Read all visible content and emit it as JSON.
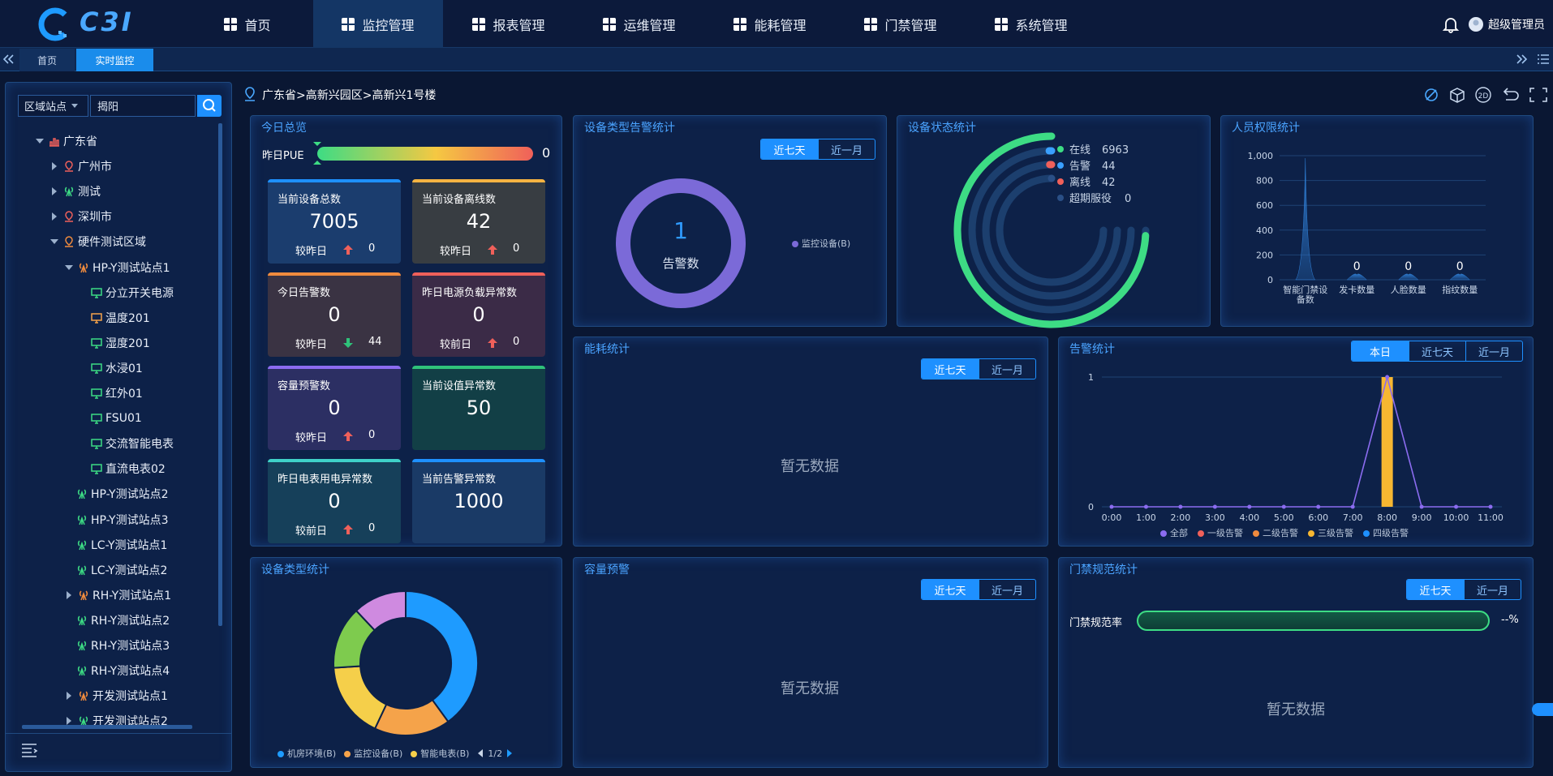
{
  "nav": {
    "logo": "C3I",
    "menu": [
      "首页",
      "监控管理",
      "报表管理",
      "运维管理",
      "能耗管理",
      "门禁管理",
      "系统管理"
    ],
    "active": 1,
    "user": "超级管理员"
  },
  "tabs": {
    "items": [
      "首页",
      "实时监控"
    ],
    "active": 1
  },
  "sidebar": {
    "filter": "区域站点",
    "search": "揭阳",
    "tree": [
      {
        "label": "广东省",
        "level": 0,
        "expander": true,
        "open": true,
        "icon": "chart",
        "color": "#f0605a"
      },
      {
        "label": "广州市",
        "level": 1,
        "expander": true,
        "open": false,
        "icon": "pin",
        "color": "#f0605a"
      },
      {
        "label": "测试",
        "level": 1,
        "expander": true,
        "open": false,
        "icon": "tower",
        "color": "#3ddc84"
      },
      {
        "label": "深圳市",
        "level": 1,
        "expander": true,
        "open": false,
        "icon": "pin",
        "color": "#f0605a"
      },
      {
        "label": "硬件测试区域",
        "level": 1,
        "expander": true,
        "open": true,
        "icon": "pin",
        "color": "#f08b3e"
      },
      {
        "label": "HP-Y测试站点1",
        "level": 2,
        "expander": true,
        "open": true,
        "icon": "tower",
        "color": "#f08b3e"
      },
      {
        "label": "分立开关电源",
        "level": 3,
        "expander": false,
        "open": false,
        "icon": "device",
        "color": "#3ddc84"
      },
      {
        "label": "温度201",
        "level": 3,
        "expander": false,
        "open": false,
        "icon": "device",
        "color": "#f5a34a"
      },
      {
        "label": "湿度201",
        "level": 3,
        "expander": false,
        "open": false,
        "icon": "device",
        "color": "#3ddc84"
      },
      {
        "label": "水浸01",
        "level": 3,
        "expander": false,
        "open": false,
        "icon": "device",
        "color": "#3ddc84"
      },
      {
        "label": "红外01",
        "level": 3,
        "expander": false,
        "open": false,
        "icon": "device",
        "color": "#3ddc84"
      },
      {
        "label": "FSU01",
        "level": 3,
        "expander": false,
        "open": false,
        "icon": "device",
        "color": "#3ddc84"
      },
      {
        "label": "交流智能电表",
        "level": 3,
        "expander": false,
        "open": false,
        "icon": "device",
        "color": "#3ddc84"
      },
      {
        "label": "直流电表02",
        "level": 3,
        "expander": false,
        "open": false,
        "icon": "device",
        "color": "#3ddc84"
      },
      {
        "label": "HP-Y测试站点2",
        "level": 2,
        "expander": false,
        "open": false,
        "icon": "tower",
        "color": "#3ddc84"
      },
      {
        "label": "HP-Y测试站点3",
        "level": 2,
        "expander": false,
        "open": false,
        "icon": "tower",
        "color": "#3ddc84"
      },
      {
        "label": "LC-Y测试站点1",
        "level": 2,
        "expander": false,
        "open": false,
        "icon": "tower",
        "color": "#3ddc84"
      },
      {
        "label": "LC-Y测试站点2",
        "level": 2,
        "expander": false,
        "open": false,
        "icon": "tower",
        "color": "#3ddc84"
      },
      {
        "label": "RH-Y测试站点1",
        "level": 2,
        "expander": true,
        "open": false,
        "icon": "tower",
        "color": "#f08b3e"
      },
      {
        "label": "RH-Y测试站点2",
        "level": 2,
        "expander": false,
        "open": false,
        "icon": "tower",
        "color": "#3ddc84"
      },
      {
        "label": "RH-Y测试站点3",
        "level": 2,
        "expander": false,
        "open": false,
        "icon": "tower",
        "color": "#3ddc84"
      },
      {
        "label": "RH-Y测试站点4",
        "level": 2,
        "expander": false,
        "open": false,
        "icon": "tower",
        "color": "#3ddc84"
      },
      {
        "label": "开发测试站点1",
        "level": 2,
        "expander": true,
        "open": false,
        "icon": "tower",
        "color": "#f08b3e"
      },
      {
        "label": "开发测试站点2",
        "level": 2,
        "expander": true,
        "open": false,
        "icon": "tower",
        "color": "#3ddc84"
      }
    ]
  },
  "breadcrumb": "广东省>高新兴园区>高新兴1号楼",
  "toolbar": {
    "mode2d": "2D"
  },
  "overview": {
    "title": "今日总览",
    "pue": {
      "label": "昨日PUE",
      "value": 0
    },
    "cards": [
      {
        "title": "当前设备总数",
        "value": 7005,
        "compare": "较昨日",
        "trend": "up",
        "delta": 0,
        "color": "#1e90ff",
        "bg": "#1b3d6e"
      },
      {
        "title": "当前设备离线数",
        "value": 42,
        "compare": "较昨日",
        "trend": "up",
        "delta": 0,
        "color": "#f5b342",
        "bg": "#383d42"
      },
      {
        "title": "今日告警数",
        "value": 0,
        "compare": "较昨日",
        "trend": "down",
        "delta": 44,
        "color": "#f08b3e",
        "bg": "#3a3343"
      },
      {
        "title": "昨日电源负载异常数",
        "value": 0,
        "compare": "较前日",
        "trend": "up",
        "delta": 0,
        "color": "#f0605a",
        "bg": "#3b2b47"
      },
      {
        "title": "容量预警数",
        "value": 0,
        "compare": "较昨日",
        "trend": "up",
        "delta": 0,
        "color": "#8b6cf0",
        "bg": "#2c2f63"
      },
      {
        "title": "当前设值异常数",
        "value": 50,
        "compare": null,
        "trend": null,
        "delta": null,
        "color": "#2fc27a",
        "bg": "#123f46"
      },
      {
        "title": "昨日电表用电异常数",
        "value": 0,
        "compare": "较前日",
        "trend": "up",
        "delta": 0,
        "color": "#3fd1c8",
        "bg": "#16405a"
      },
      {
        "title": "当前告警异常数",
        "value": 1000,
        "compare": null,
        "trend": null,
        "delta": null,
        "color": "#1e90ff",
        "bg": "#1a3a66"
      }
    ]
  },
  "alarm_type": {
    "title": "设备类型告警统计",
    "buttons": [
      "近七天",
      "近一月"
    ],
    "active": 0,
    "total": 1,
    "total_label": "告警数",
    "series": [
      {
        "name": "监控设备(B)",
        "color": "#7b6ad8",
        "value": 1
      }
    ]
  },
  "device_status": {
    "title": "设备状态统计",
    "series": [
      {
        "name": "在线",
        "value": 6963,
        "color": "#3ddc84"
      },
      {
        "name": "告警",
        "value": 44,
        "color": "#3aa0ff"
      },
      {
        "name": "离线",
        "value": 42,
        "color": "#f0605a"
      },
      {
        "name": "超期服役",
        "value": 0,
        "color": "#2a4f86"
      }
    ]
  },
  "personnel": {
    "title": "人员权限统计",
    "chart_data": {
      "type": "bar",
      "categories": [
        "智能门禁设备数",
        "发卡数量",
        "人脸数量",
        "指纹数量"
      ],
      "values": [
        980,
        0,
        0,
        0
      ],
      "value_labels": [
        null,
        "0",
        "0",
        "0"
      ],
      "color": "#2f7fd6",
      "ylim": [
        0,
        1000
      ],
      "yticks": [
        0,
        200,
        400,
        600,
        800,
        {
          "value": 1000,
          "label": "1,000"
        }
      ],
      "grid": true
    }
  },
  "energy": {
    "title": "能耗统计",
    "buttons": [
      "近七天",
      "近一月"
    ],
    "active": 0,
    "empty": "暂无数据"
  },
  "alarm_stats": {
    "title": "告警统计",
    "buttons": [
      "本日",
      "近七天",
      "近一月"
    ],
    "active": 0,
    "chart_data": {
      "type": "combo",
      "categories": [
        "0:00",
        "1:00",
        "2:00",
        "3:00",
        "4:00",
        "5:00",
        "6:00",
        "7:00",
        "8:00",
        "9:00",
        "10:00",
        "11:00"
      ],
      "ylim": [
        0,
        1
      ],
      "yticks": [
        0,
        1
      ],
      "grid": true,
      "series": [
        {
          "name": "全部",
          "type": "line",
          "color": "#8b6cf0",
          "values": [
            0,
            0,
            0,
            0,
            0,
            0,
            0,
            0,
            1,
            0,
            0,
            0
          ]
        },
        {
          "name": "一级告警",
          "type": "bar",
          "color": "#f0605a",
          "values": [
            0,
            0,
            0,
            0,
            0,
            0,
            0,
            0,
            0,
            0,
            0,
            0
          ]
        },
        {
          "name": "二级告警",
          "type": "bar",
          "color": "#f08b3e",
          "values": [
            0,
            0,
            0,
            0,
            0,
            0,
            0,
            0,
            0,
            0,
            0,
            0
          ]
        },
        {
          "name": "三级告警",
          "type": "bar",
          "color": "#f7b731",
          "values": [
            0,
            0,
            0,
            0,
            0,
            0,
            0,
            0,
            1,
            0,
            0,
            0
          ]
        },
        {
          "name": "四级告警",
          "type": "bar",
          "color": "#1e90ff",
          "values": [
            0,
            0,
            0,
            0,
            0,
            0,
            0,
            0,
            0,
            0,
            0,
            0
          ]
        }
      ]
    }
  },
  "device_type": {
    "title": "设备类型统计",
    "chart_data": {
      "type": "donut",
      "pager": "1/2",
      "series": [
        {
          "name": "机房环境(B)",
          "color": "#1e9bff",
          "value": 40
        },
        {
          "name": "监控设备(B)",
          "color": "#f5a34a",
          "value": 17
        },
        {
          "name": "智能电表(B)",
          "color": "#f5cf4a",
          "value": 17
        },
        {
          "name": null,
          "color": "#7ecb4e",
          "value": 14
        },
        {
          "name": null,
          "color": "#cf8ae0",
          "value": 12
        }
      ]
    }
  },
  "capacity": {
    "title": "容量预警",
    "buttons": [
      "近七天",
      "近一月"
    ],
    "active": 0,
    "empty": "暂无数据"
  },
  "access": {
    "title": "门禁规范统计",
    "buttons": [
      "近七天",
      "近一月"
    ],
    "active": 0,
    "rate_label": "门禁规范率",
    "rate": "--%",
    "empty": "暂无数据"
  }
}
